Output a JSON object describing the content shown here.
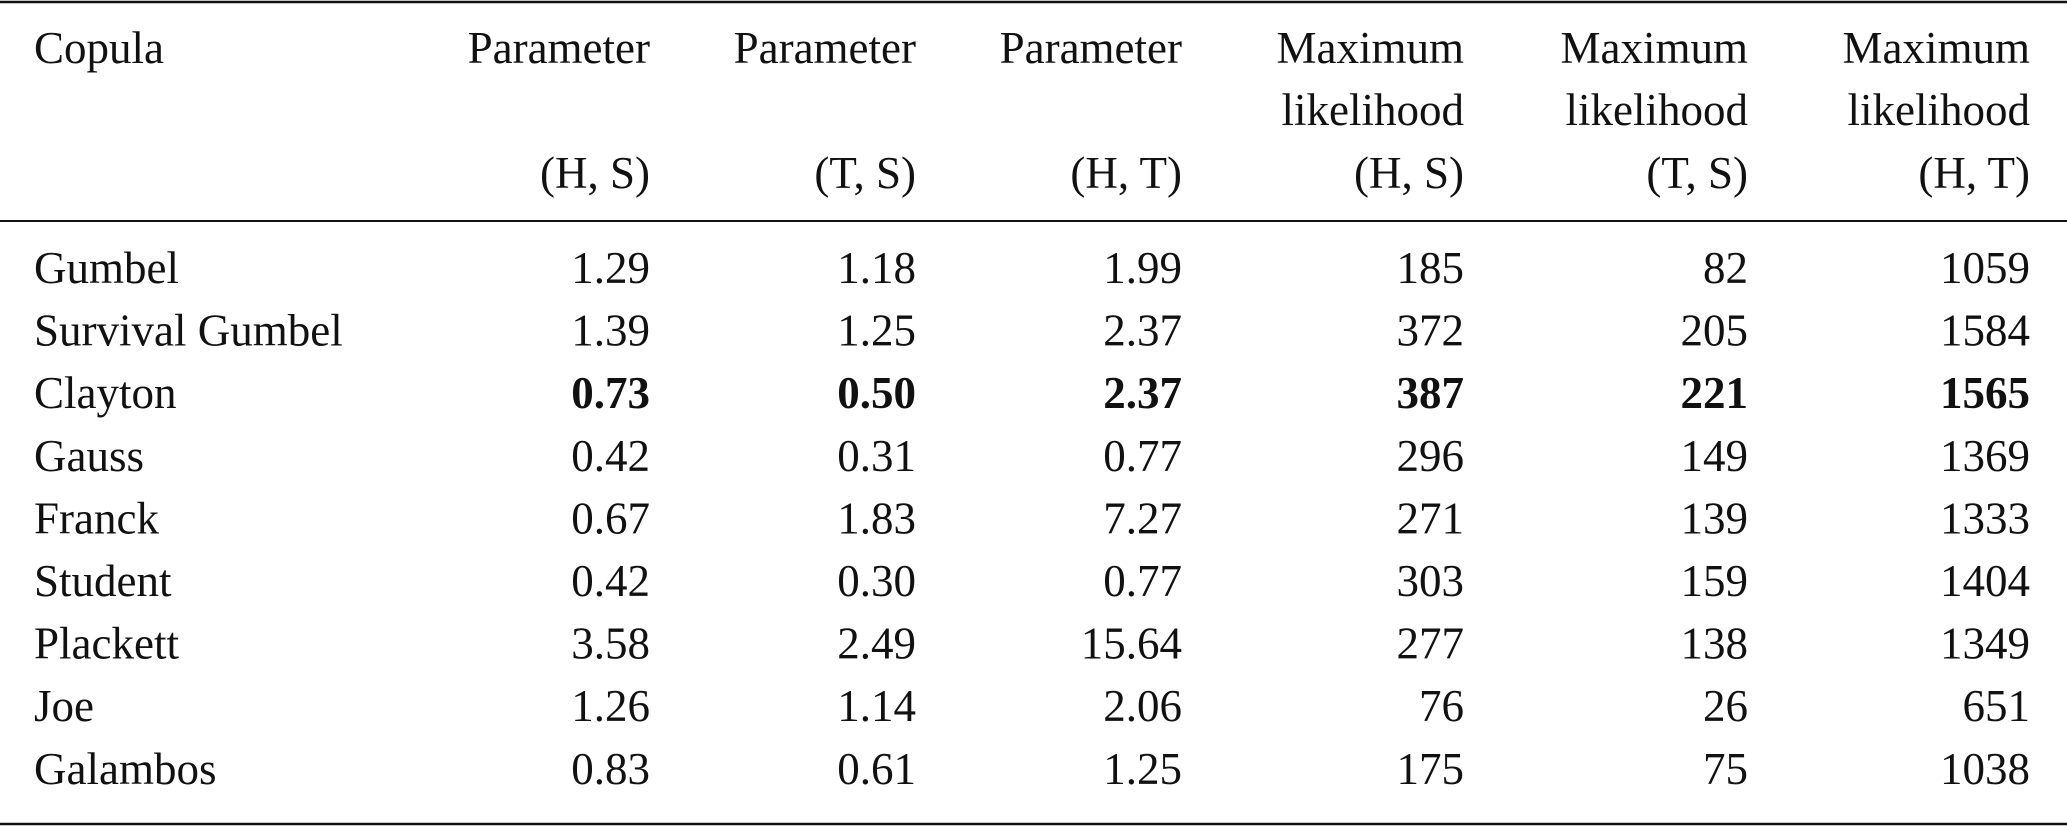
{
  "table": {
    "header": [
      {
        "lines": [
          "Copula"
        ]
      },
      {
        "lines": [
          "Parameter"
        ],
        "pair": "(H, S)"
      },
      {
        "lines": [
          "Parameter"
        ],
        "pair": "(T, S)"
      },
      {
        "lines": [
          "Parameter"
        ],
        "pair": "(H, T)"
      },
      {
        "lines": [
          "Maximum",
          "likelihood"
        ],
        "pair": "(H, S)"
      },
      {
        "lines": [
          "Maximum",
          "likelihood"
        ],
        "pair": "(T, S)"
      },
      {
        "lines": [
          "Maximum",
          "likelihood"
        ],
        "pair": "(H, T)"
      }
    ],
    "rows": [
      {
        "cells": [
          "Gumbel",
          "1.29",
          "1.18",
          "1.99",
          "185",
          "82",
          "1059"
        ]
      },
      {
        "cells": [
          "Survival Gumbel",
          "1.39",
          "1.25",
          "2.37",
          "372",
          "205",
          "1584"
        ]
      },
      {
        "cells": [
          "Clayton",
          "0.73",
          "0.50",
          "2.37",
          "387",
          "221",
          "1565"
        ],
        "bold": true
      },
      {
        "cells": [
          "Gauss",
          "0.42",
          "0.31",
          "0.77",
          "296",
          "149",
          "1369"
        ]
      },
      {
        "cells": [
          "Franck",
          "0.67",
          "1.83",
          "7.27",
          "271",
          "139",
          "1333"
        ]
      },
      {
        "cells": [
          "Student",
          "0.42",
          "0.30",
          "0.77",
          "303",
          "159",
          "1404"
        ]
      },
      {
        "cells": [
          "Plackett",
          "3.58",
          "2.49",
          "15.64",
          "277",
          "138",
          "1349"
        ]
      },
      {
        "cells": [
          "Joe",
          "1.26",
          "1.14",
          "2.06",
          "76",
          "26",
          "651"
        ]
      },
      {
        "cells": [
          "Galambos",
          "0.83",
          "0.61",
          "1.25",
          "175",
          "75",
          "1038"
        ]
      }
    ]
  }
}
